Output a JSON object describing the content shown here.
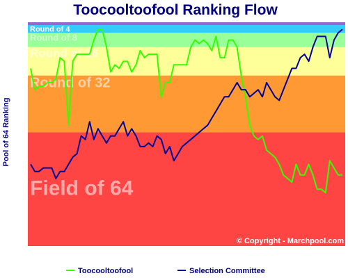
{
  "chart_data": {
    "type": "line",
    "title": "Toocooltoofool Ranking Flow",
    "xlabel": "",
    "ylabel": "Pool of 64 Ranking",
    "ylim": [
      1,
      64
    ],
    "y_inverted": true,
    "grid": false,
    "legend_position": "bottom",
    "copyright": "© Copyright - Marchpool.com",
    "zones": [
      {
        "label": "Round of 4",
        "from": 1,
        "to": 4,
        "color": "#33ccff"
      },
      {
        "label": "Round of 8",
        "from": 4,
        "to": 8,
        "color": "#99ff99"
      },
      {
        "label": "Round of 16",
        "from": 8,
        "to": 16,
        "color": "#ffff99"
      },
      {
        "label": "Round of 32",
        "from": 16,
        "to": 32,
        "color": "#ff9933"
      },
      {
        "label": "Field of 64",
        "from": 32,
        "to": 64,
        "color": "#ff4444"
      }
    ],
    "x": [
      1,
      2,
      3,
      4,
      5,
      6,
      7,
      8,
      9,
      10,
      11,
      12,
      13,
      14,
      15,
      16,
      17,
      18,
      19,
      20,
      21,
      22,
      23,
      24,
      25,
      26,
      27,
      28,
      29,
      30,
      31,
      32,
      33,
      34,
      35,
      36,
      37,
      38,
      39,
      40,
      41,
      42,
      43,
      44,
      45,
      46,
      47,
      48,
      49,
      50,
      51,
      52,
      53,
      54,
      55,
      56,
      57,
      58,
      59,
      60,
      61,
      62,
      63,
      64,
      65,
      66,
      67,
      68,
      69,
      70,
      71,
      72,
      73,
      74,
      75
    ],
    "series": [
      {
        "name": "Toocooltoofool",
        "color": "#33ff00",
        "values": [
          14,
          20,
          19,
          19,
          18,
          18,
          17,
          11,
          12,
          30,
          12,
          10,
          10,
          10,
          10,
          6,
          3,
          3,
          8,
          15,
          13,
          14,
          12,
          12,
          15,
          13,
          9,
          11,
          10,
          10,
          10,
          22,
          18,
          18,
          13,
          13,
          13,
          13,
          8,
          6,
          7,
          6,
          7,
          9,
          5,
          11,
          11,
          6,
          6,
          8,
          16,
          22,
          30,
          33,
          34,
          33,
          37,
          38,
          39,
          41,
          44,
          45,
          46,
          41,
          44,
          44,
          41,
          44,
          48,
          48,
          49,
          40,
          42,
          44,
          44
        ]
      },
      {
        "name": "Selection Committee",
        "color": "#000099",
        "values": [
          41,
          43,
          43,
          42,
          42,
          42,
          45,
          43,
          43,
          41,
          39,
          38,
          33,
          34,
          29,
          34,
          31,
          33,
          35,
          33,
          33,
          31,
          29,
          33,
          31,
          33,
          36,
          36,
          35,
          36,
          33,
          34,
          38,
          36,
          40,
          38,
          36,
          35,
          34,
          33,
          32,
          31,
          30,
          28,
          26,
          24,
          22,
          22,
          20,
          18,
          20,
          20,
          22,
          21,
          20,
          22,
          18,
          20,
          22,
          23,
          20,
          17,
          14,
          14,
          11,
          10,
          12,
          8,
          5,
          5,
          5,
          11,
          6,
          4,
          3
        ]
      }
    ]
  }
}
